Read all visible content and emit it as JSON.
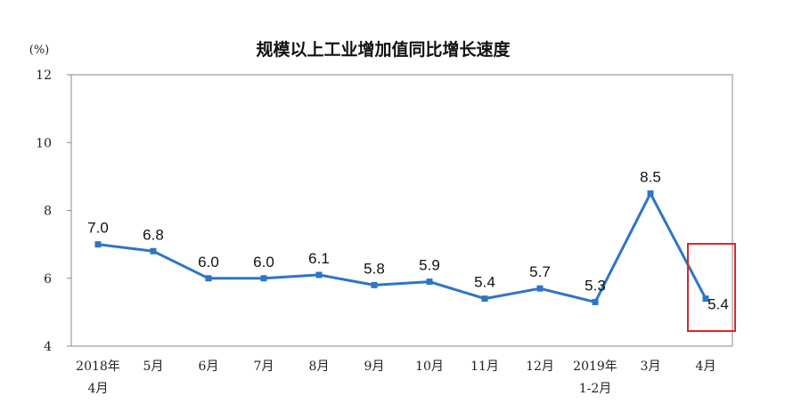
{
  "chart_data": {
    "type": "line",
    "title": "规模以上工业增加值同比增长速度",
    "unit_label": "(%)",
    "ylim": [
      4,
      12
    ],
    "yticks": [
      4,
      6,
      8,
      10,
      12
    ],
    "categories": [
      {
        "line1": "2018年",
        "line2": "4月"
      },
      {
        "line1": "5月",
        "line2": ""
      },
      {
        "line1": "6月",
        "line2": ""
      },
      {
        "line1": "7月",
        "line2": ""
      },
      {
        "line1": "8月",
        "line2": ""
      },
      {
        "line1": "9月",
        "line2": ""
      },
      {
        "line1": "10月",
        "line2": ""
      },
      {
        "line1": "11月",
        "line2": ""
      },
      {
        "line1": "12月",
        "line2": ""
      },
      {
        "line1": "2019年",
        "line2": "1-2月"
      },
      {
        "line1": "3月",
        "line2": ""
      },
      {
        "line1": "4月",
        "line2": ""
      }
    ],
    "values": [
      7.0,
      6.8,
      6.0,
      6.0,
      6.1,
      5.8,
      5.9,
      5.4,
      5.7,
      5.3,
      8.5,
      5.4
    ],
    "data_labels": [
      "7.0",
      "6.8",
      "6.0",
      "6.0",
      "6.1",
      "5.8",
      "5.9",
      "5.4",
      "5.7",
      "5.3",
      "8.5",
      "5.4"
    ],
    "grid": false,
    "highlight_index": 11,
    "colors": {
      "line": "#2e75c6",
      "highlight_box": "#d9282f",
      "axis": "#888888"
    }
  }
}
